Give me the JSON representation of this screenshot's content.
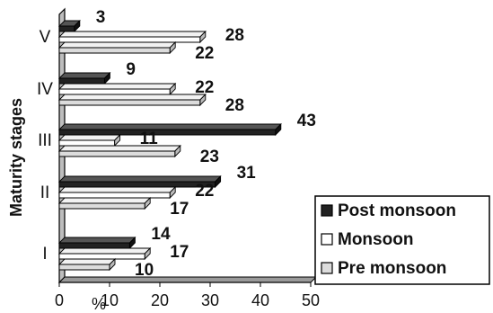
{
  "chart_data": {
    "type": "bar",
    "orientation": "horizontal",
    "style": "3d",
    "ylabel": "Maturity stages",
    "xlabel": "%",
    "categories": [
      "I",
      "II",
      "III",
      "IV",
      "V"
    ],
    "xlim": [
      0,
      50
    ],
    "xticks": [
      0,
      10,
      20,
      30,
      40,
      50
    ],
    "series": [
      {
        "name": "Post monsoon",
        "color": "#222222",
        "values": [
          14,
          31,
          43,
          9,
          3
        ]
      },
      {
        "name": "Monsoon",
        "color": "#ffffff",
        "values": [
          17,
          22,
          11,
          22,
          28
        ]
      },
      {
        "name": "Pre monsoon",
        "color": "#dcdcdc",
        "values": [
          10,
          17,
          23,
          28,
          22
        ]
      }
    ],
    "legend_position": "bottom-right",
    "grid": false
  }
}
